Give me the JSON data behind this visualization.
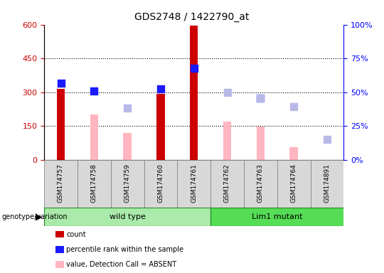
{
  "title": "GDS2748 / 1422790_at",
  "samples": [
    "GSM174757",
    "GSM174758",
    "GSM174759",
    "GSM174760",
    "GSM174761",
    "GSM174762",
    "GSM174763",
    "GSM174764",
    "GSM174891"
  ],
  "count": [
    315,
    0,
    0,
    293,
    595,
    0,
    0,
    0,
    0
  ],
  "percentile_rank": [
    340,
    305,
    null,
    315,
    405,
    null,
    275,
    null,
    null
  ],
  "value_absent": [
    0,
    200,
    120,
    0,
    0,
    170,
    148,
    55,
    0
  ],
  "rank_absent": [
    null,
    null,
    230,
    null,
    null,
    300,
    275,
    235,
    90
  ],
  "ylim_left": [
    0,
    600
  ],
  "ylim_right": [
    0,
    100
  ],
  "yticks_left": [
    0,
    150,
    300,
    450,
    600
  ],
  "yticks_right": [
    0,
    25,
    50,
    75,
    100
  ],
  "ytick_labels_left": [
    "0",
    "150",
    "300",
    "450",
    "600"
  ],
  "ytick_labels_right": [
    "0%",
    "25%",
    "50%",
    "75%",
    "100%"
  ],
  "count_color": "#cc0000",
  "rank_color": "#1a1aff",
  "value_absent_color": "#ffb6c1",
  "rank_absent_color": "#b8b8e8",
  "bar_width": 0.45,
  "dot_size": 55,
  "wild_type_color": "#c8f0c8",
  "lim1_color": "#66dd66",
  "group_label_color": "#66dd66"
}
